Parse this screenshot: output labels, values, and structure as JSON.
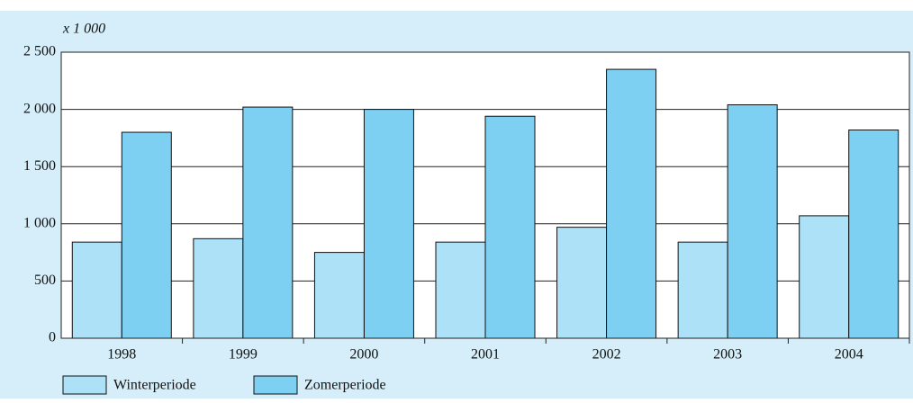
{
  "chart_data": {
    "type": "bar",
    "unit_label": "x 1 000",
    "categories": [
      "1998",
      "1999",
      "2000",
      "2001",
      "2002",
      "2003",
      "2004"
    ],
    "series": [
      {
        "name": "Winterperiode",
        "color": "#ade1f8",
        "values": [
          840,
          870,
          750,
          840,
          970,
          840,
          1070
        ]
      },
      {
        "name": "Zomerperiode",
        "color": "#7ed0f3",
        "values": [
          1800,
          2020,
          2000,
          1940,
          2350,
          2040,
          1820
        ]
      }
    ],
    "ylim": [
      0,
      2500
    ],
    "yticks": [
      0,
      500,
      {
        "value": 1000,
        "label": "1 000"
      },
      {
        "value": 1500,
        "label": "1 500"
      },
      {
        "value": 2000,
        "label": "2 000"
      },
      {
        "value": 2500,
        "label": "2 500"
      }
    ],
    "grid": true,
    "legend": "bottom-left"
  }
}
